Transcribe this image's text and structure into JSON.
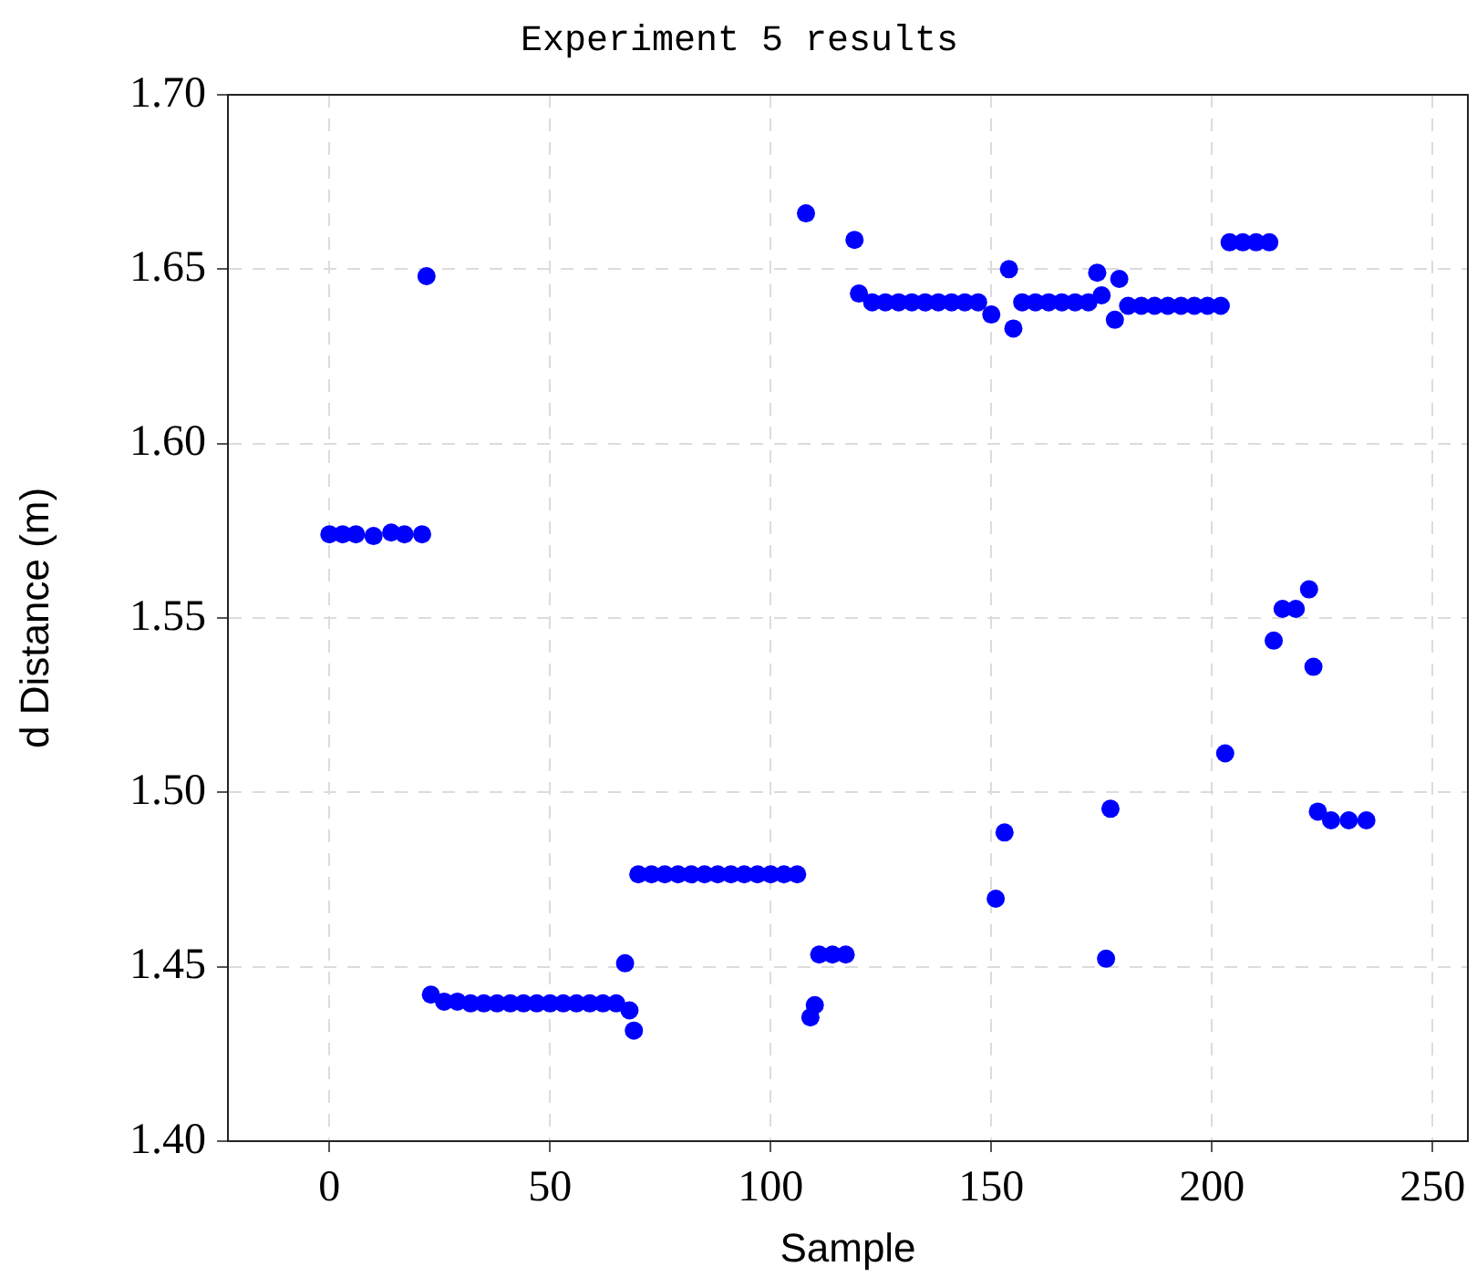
{
  "chart_data": {
    "type": "scatter",
    "title": "Experiment 5 results",
    "xlabel": "Sample",
    "ylabel": "d Distance (m)",
    "xlim": [
      -23,
      258
    ],
    "xticks": [
      0,
      50,
      100,
      150,
      200,
      250
    ],
    "ylim": [
      1.4,
      1.7
    ],
    "yticks": [
      {
        "value": 1.4,
        "label": "1.40"
      },
      {
        "value": 1.45,
        "label": "1.45"
      },
      {
        "value": 1.5,
        "label": "1.50"
      },
      {
        "value": 1.55,
        "label": "1.55"
      },
      {
        "value": 1.6,
        "label": "1.60"
      },
      {
        "value": 1.65,
        "label": "1.65"
      },
      {
        "value": 1.7,
        "label": "1.70"
      }
    ],
    "grid": true,
    "legend": false,
    "marker": "circle",
    "series": [
      {
        "color": "#0000ff",
        "x": [
          0,
          3,
          6,
          10,
          14,
          17,
          21,
          22,
          23,
          26,
          29,
          32,
          35,
          38,
          41,
          44,
          47,
          50,
          53,
          56,
          59,
          62,
          65,
          67,
          68,
          69,
          70,
          73,
          76,
          79,
          82,
          85,
          88,
          91,
          94,
          97,
          100,
          103,
          106,
          108,
          109,
          110,
          111,
          114,
          117,
          119,
          120,
          123,
          126,
          129,
          132,
          135,
          138,
          141,
          144,
          147,
          150,
          151,
          153,
          154,
          155,
          157,
          160,
          163,
          166,
          169,
          172,
          174,
          175,
          176,
          177,
          178,
          179,
          181,
          184,
          187,
          190,
          193,
          196,
          199,
          202,
          203,
          204,
          207,
          210,
          213,
          214,
          216,
          219,
          222,
          223,
          224,
          227,
          231,
          235
        ],
        "values": [
          1.574,
          1.574,
          1.574,
          1.5735,
          1.5745,
          1.574,
          1.574,
          1.648,
          1.442,
          1.44,
          1.44,
          1.4395,
          1.4395,
          1.4395,
          1.4395,
          1.4395,
          1.4395,
          1.4395,
          1.4395,
          1.4395,
          1.4395,
          1.4395,
          1.4395,
          1.451,
          1.4375,
          1.4317,
          1.4765,
          1.4765,
          1.4765,
          1.4765,
          1.4765,
          1.4765,
          1.4765,
          1.4765,
          1.4765,
          1.4765,
          1.4765,
          1.4765,
          1.4765,
          1.666,
          1.4355,
          1.439,
          1.4535,
          1.4535,
          1.4535,
          1.6584,
          1.643,
          1.6405,
          1.6405,
          1.6405,
          1.6405,
          1.6405,
          1.6405,
          1.6405,
          1.6405,
          1.6405,
          1.637,
          1.4695,
          1.4885,
          1.65,
          1.633,
          1.6405,
          1.6405,
          1.6405,
          1.6405,
          1.6405,
          1.6405,
          1.649,
          1.6425,
          1.4523,
          1.4953,
          1.6355,
          1.6472,
          1.6395,
          1.6395,
          1.6395,
          1.6395,
          1.6395,
          1.6395,
          1.6395,
          1.6395,
          1.5112,
          1.6577,
          1.6577,
          1.6577,
          1.6577,
          1.5435,
          1.5526,
          1.5526,
          1.5582,
          1.536,
          1.4945,
          1.492,
          1.492,
          1.492
        ]
      }
    ]
  }
}
